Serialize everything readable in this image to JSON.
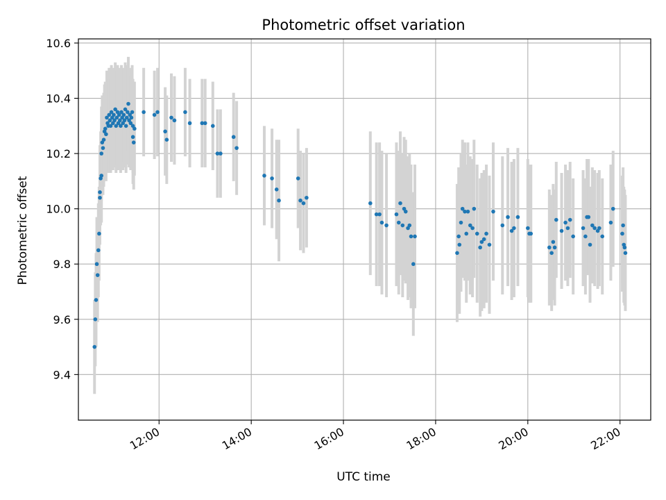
{
  "chart_data": {
    "type": "scatter",
    "title": "Photometric offset variation",
    "xlabel": "UTC time",
    "ylabel": "Photometric offset",
    "grid": true,
    "legend": "none",
    "xlim": [
      "10:15",
      "22:40"
    ],
    "ylim": [
      9.235,
      10.615
    ],
    "xticks": [
      "12:00",
      "14:00",
      "16:00",
      "18:00",
      "20:00",
      "22:00"
    ],
    "yticks": [
      9.4,
      9.6,
      9.8,
      10.0,
      10.2,
      10.4,
      10.6
    ],
    "ytick_labels": [
      "9.4",
      "9.6",
      "9.8",
      "10.0",
      "10.2",
      "10.4",
      "10.6"
    ],
    "colors": {
      "points": "#1f77b4",
      "errorbars": "#d3d3d3",
      "grid": "#b0b0b0"
    },
    "series": [
      {
        "marker": "point with error bar",
        "points": [
          {
            "t": "10:36",
            "y": 9.5,
            "err": 0.17
          },
          {
            "t": "10:37",
            "y": 9.6,
            "err": 0.17
          },
          {
            "t": "10:38",
            "y": 9.67,
            "err": 0.17
          },
          {
            "t": "10:39",
            "y": 9.8,
            "err": 0.17
          },
          {
            "t": "10:40",
            "y": 9.76,
            "err": 0.17
          },
          {
            "t": "10:41",
            "y": 9.85,
            "err": 0.17
          },
          {
            "t": "10:42",
            "y": 9.91,
            "err": 0.17
          },
          {
            "t": "10:43",
            "y": 10.04,
            "err": 0.17
          },
          {
            "t": "10:43",
            "y": 10.06,
            "err": 0.17
          },
          {
            "t": "10:44",
            "y": 10.11,
            "err": 0.17
          },
          {
            "t": "10:45",
            "y": 10.12,
            "err": 0.17
          },
          {
            "t": "10:45",
            "y": 10.2,
            "err": 0.17
          },
          {
            "t": "10:46",
            "y": 10.24,
            "err": 0.17
          },
          {
            "t": "10:47",
            "y": 10.22,
            "err": 0.17
          },
          {
            "t": "10:48",
            "y": 10.25,
            "err": 0.17
          },
          {
            "t": "10:49",
            "y": 10.28,
            "err": 0.17
          },
          {
            "t": "10:50",
            "y": 10.29,
            "err": 0.17
          },
          {
            "t": "10:51",
            "y": 10.27,
            "err": 0.17
          },
          {
            "t": "10:52",
            "y": 10.33,
            "err": 0.17
          },
          {
            "t": "10:53",
            "y": 10.31,
            "err": 0.17
          },
          {
            "t": "10:54",
            "y": 10.3,
            "err": 0.17
          },
          {
            "t": "10:55",
            "y": 10.34,
            "err": 0.17
          },
          {
            "t": "10:56",
            "y": 10.32,
            "err": 0.17
          },
          {
            "t": "10:57",
            "y": 10.3,
            "err": 0.17
          },
          {
            "t": "10:58",
            "y": 10.35,
            "err": 0.17
          },
          {
            "t": "10:59",
            "y": 10.33,
            "err": 0.17
          },
          {
            "t": "11:00",
            "y": 10.31,
            "err": 0.17
          },
          {
            "t": "11:01",
            "y": 10.34,
            "err": 0.17
          },
          {
            "t": "11:02",
            "y": 10.32,
            "err": 0.17
          },
          {
            "t": "11:03",
            "y": 10.36,
            "err": 0.17
          },
          {
            "t": "11:04",
            "y": 10.3,
            "err": 0.17
          },
          {
            "t": "11:05",
            "y": 10.33,
            "err": 0.17
          },
          {
            "t": "11:06",
            "y": 10.35,
            "err": 0.17
          },
          {
            "t": "11:07",
            "y": 10.31,
            "err": 0.17
          },
          {
            "t": "11:08",
            "y": 10.34,
            "err": 0.17
          },
          {
            "t": "11:09",
            "y": 10.32,
            "err": 0.17
          },
          {
            "t": "11:10",
            "y": 10.3,
            "err": 0.17
          },
          {
            "t": "11:11",
            "y": 10.35,
            "err": 0.17
          },
          {
            "t": "11:12",
            "y": 10.33,
            "err": 0.17
          },
          {
            "t": "11:13",
            "y": 10.31,
            "err": 0.17
          },
          {
            "t": "11:14",
            "y": 10.34,
            "err": 0.17
          },
          {
            "t": "11:15",
            "y": 10.32,
            "err": 0.17
          },
          {
            "t": "11:16",
            "y": 10.36,
            "err": 0.17
          },
          {
            "t": "11:17",
            "y": 10.3,
            "err": 0.17
          },
          {
            "t": "11:18",
            "y": 10.33,
            "err": 0.17
          },
          {
            "t": "11:19",
            "y": 10.35,
            "err": 0.17
          },
          {
            "t": "11:20",
            "y": 10.38,
            "err": 0.17
          },
          {
            "t": "11:21",
            "y": 10.32,
            "err": 0.17
          },
          {
            "t": "11:22",
            "y": 10.34,
            "err": 0.17
          },
          {
            "t": "11:23",
            "y": 10.31,
            "err": 0.17
          },
          {
            "t": "11:24",
            "y": 10.33,
            "err": 0.17
          },
          {
            "t": "11:25",
            "y": 10.35,
            "err": 0.17
          },
          {
            "t": "11:26",
            "y": 10.3,
            "err": 0.17
          },
          {
            "t": "11:26",
            "y": 10.26,
            "err": 0.17
          },
          {
            "t": "11:27",
            "y": 10.24,
            "err": 0.17
          },
          {
            "t": "11:28",
            "y": 10.29,
            "err": 0.17
          },
          {
            "t": "11:40",
            "y": 10.35,
            "err": 0.16
          },
          {
            "t": "11:54",
            "y": 10.34,
            "err": 0.16
          },
          {
            "t": "11:58",
            "y": 10.35,
            "err": 0.16
          },
          {
            "t": "12:08",
            "y": 10.28,
            "err": 0.16
          },
          {
            "t": "12:10",
            "y": 10.25,
            "err": 0.16
          },
          {
            "t": "12:16",
            "y": 10.33,
            "err": 0.16
          },
          {
            "t": "12:20",
            "y": 10.32,
            "err": 0.16
          },
          {
            "t": "12:34",
            "y": 10.35,
            "err": 0.16
          },
          {
            "t": "12:40",
            "y": 10.31,
            "err": 0.16
          },
          {
            "t": "12:56",
            "y": 10.31,
            "err": 0.16
          },
          {
            "t": "13:00",
            "y": 10.31,
            "err": 0.16
          },
          {
            "t": "13:10",
            "y": 10.3,
            "err": 0.16
          },
          {
            "t": "13:16",
            "y": 10.2,
            "err": 0.16
          },
          {
            "t": "13:20",
            "y": 10.2,
            "err": 0.16
          },
          {
            "t": "13:37",
            "y": 10.26,
            "err": 0.16
          },
          {
            "t": "13:41",
            "y": 10.22,
            "err": 0.17
          },
          {
            "t": "14:17",
            "y": 10.12,
            "err": 0.18
          },
          {
            "t": "14:27",
            "y": 10.11,
            "err": 0.18
          },
          {
            "t": "14:33",
            "y": 10.07,
            "err": 0.18
          },
          {
            "t": "14:36",
            "y": 10.03,
            "err": 0.22
          },
          {
            "t": "15:01",
            "y": 10.11,
            "err": 0.18
          },
          {
            "t": "15:04",
            "y": 10.03,
            "err": 0.18
          },
          {
            "t": "15:08",
            "y": 10.02,
            "err": 0.18
          },
          {
            "t": "15:12",
            "y": 10.04,
            "err": 0.18
          },
          {
            "t": "16:35",
            "y": 10.02,
            "err": 0.26
          },
          {
            "t": "16:43",
            "y": 9.98,
            "err": 0.26
          },
          {
            "t": "16:47",
            "y": 9.98,
            "err": 0.26
          },
          {
            "t": "16:50",
            "y": 9.95,
            "err": 0.26
          },
          {
            "t": "16:56",
            "y": 9.94,
            "err": 0.26
          },
          {
            "t": "17:09",
            "y": 9.98,
            "err": 0.26
          },
          {
            "t": "17:12",
            "y": 9.95,
            "err": 0.26
          },
          {
            "t": "17:14",
            "y": 10.02,
            "err": 0.26
          },
          {
            "t": "17:17",
            "y": 9.94,
            "err": 0.26
          },
          {
            "t": "17:19",
            "y": 10.0,
            "err": 0.26
          },
          {
            "t": "17:21",
            "y": 9.99,
            "err": 0.26
          },
          {
            "t": "17:24",
            "y": 9.93,
            "err": 0.26
          },
          {
            "t": "17:26",
            "y": 9.94,
            "err": 0.26
          },
          {
            "t": "17:28",
            "y": 9.9,
            "err": 0.26
          },
          {
            "t": "17:31",
            "y": 9.8,
            "err": 0.26
          },
          {
            "t": "17:33",
            "y": 9.9,
            "err": 0.26
          },
          {
            "t": "18:28",
            "y": 9.84,
            "err": 0.25
          },
          {
            "t": "18:30",
            "y": 9.9,
            "err": 0.25
          },
          {
            "t": "18:31",
            "y": 9.87,
            "err": 0.25
          },
          {
            "t": "18:33",
            "y": 9.95,
            "err": 0.25
          },
          {
            "t": "18:35",
            "y": 10.0,
            "err": 0.25
          },
          {
            "t": "18:38",
            "y": 9.99,
            "err": 0.25
          },
          {
            "t": "18:40",
            "y": 9.91,
            "err": 0.25
          },
          {
            "t": "18:42",
            "y": 9.99,
            "err": 0.25
          },
          {
            "t": "18:45",
            "y": 9.94,
            "err": 0.25
          },
          {
            "t": "18:48",
            "y": 9.93,
            "err": 0.25
          },
          {
            "t": "18:50",
            "y": 10.0,
            "err": 0.25
          },
          {
            "t": "18:54",
            "y": 9.91,
            "err": 0.25
          },
          {
            "t": "18:58",
            "y": 9.86,
            "err": 0.25
          },
          {
            "t": "19:00",
            "y": 9.88,
            "err": 0.25
          },
          {
            "t": "19:03",
            "y": 9.89,
            "err": 0.25
          },
          {
            "t": "19:06",
            "y": 9.91,
            "err": 0.25
          },
          {
            "t": "19:10",
            "y": 9.87,
            "err": 0.25
          },
          {
            "t": "19:15",
            "y": 9.99,
            "err": 0.25
          },
          {
            "t": "19:27",
            "y": 9.94,
            "err": 0.25
          },
          {
            "t": "19:34",
            "y": 9.97,
            "err": 0.25
          },
          {
            "t": "19:39",
            "y": 9.92,
            "err": 0.25
          },
          {
            "t": "19:42",
            "y": 9.93,
            "err": 0.25
          },
          {
            "t": "19:47",
            "y": 9.97,
            "err": 0.25
          },
          {
            "t": "20:00",
            "y": 9.93,
            "err": 0.25
          },
          {
            "t": "20:02",
            "y": 9.91,
            "err": 0.25
          },
          {
            "t": "20:04",
            "y": 9.91,
            "err": 0.25
          },
          {
            "t": "20:28",
            "y": 9.86,
            "err": 0.21
          },
          {
            "t": "20:31",
            "y": 9.84,
            "err": 0.21
          },
          {
            "t": "20:33",
            "y": 9.88,
            "err": 0.21
          },
          {
            "t": "20:35",
            "y": 9.86,
            "err": 0.21
          },
          {
            "t": "20:37",
            "y": 9.96,
            "err": 0.21
          },
          {
            "t": "20:44",
            "y": 9.92,
            "err": 0.21
          },
          {
            "t": "20:49",
            "y": 9.95,
            "err": 0.21
          },
          {
            "t": "20:52",
            "y": 9.93,
            "err": 0.21
          },
          {
            "t": "20:55",
            "y": 9.96,
            "err": 0.21
          },
          {
            "t": "20:59",
            "y": 9.9,
            "err": 0.21
          },
          {
            "t": "21:12",
            "y": 9.93,
            "err": 0.21
          },
          {
            "t": "21:15",
            "y": 9.9,
            "err": 0.21
          },
          {
            "t": "21:17",
            "y": 9.97,
            "err": 0.21
          },
          {
            "t": "21:19",
            "y": 9.97,
            "err": 0.21
          },
          {
            "t": "21:21",
            "y": 9.87,
            "err": 0.21
          },
          {
            "t": "21:24",
            "y": 9.94,
            "err": 0.21
          },
          {
            "t": "21:27",
            "y": 9.93,
            "err": 0.21
          },
          {
            "t": "21:31",
            "y": 9.92,
            "err": 0.21
          },
          {
            "t": "21:33",
            "y": 9.93,
            "err": 0.21
          },
          {
            "t": "21:37",
            "y": 9.9,
            "err": 0.21
          },
          {
            "t": "21:48",
            "y": 9.95,
            "err": 0.21
          },
          {
            "t": "21:51",
            "y": 10.0,
            "err": 0.21
          },
          {
            "t": "22:03",
            "y": 9.91,
            "err": 0.21
          },
          {
            "t": "22:04",
            "y": 9.94,
            "err": 0.21
          },
          {
            "t": "22:05",
            "y": 9.87,
            "err": 0.21
          },
          {
            "t": "22:06",
            "y": 9.86,
            "err": 0.21
          },
          {
            "t": "22:07",
            "y": 9.84,
            "err": 0.21
          }
        ]
      }
    ]
  }
}
